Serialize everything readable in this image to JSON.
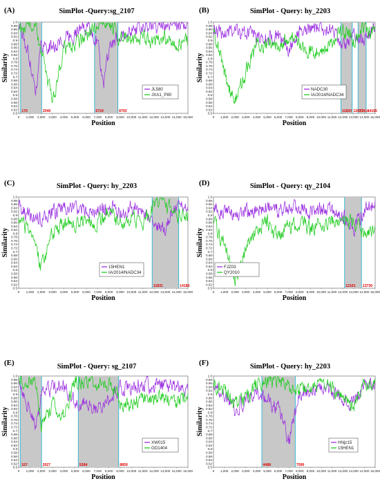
{
  "figure": {
    "colors": {
      "series_1": "#9b30e0",
      "series_2": "#22cc22",
      "shade": "#c8c8c8",
      "boundary": "#28b7d2",
      "region_label": "#e00000"
    },
    "panels": [
      {
        "label": "(A)",
        "title": "SimPlot -Query:sg_2107",
        "legend": [
          "JL580",
          "JXA1_P80"
        ],
        "ylabel": "Similarity",
        "xlabel": "Position",
        "ylim": [
          0.5,
          1.0
        ],
        "xlim": [
          0,
          15000
        ],
        "yticks": [
          "0.5",
          "0.52",
          "0.54",
          "0.56",
          "0.58",
          "0.6",
          "0.62",
          "0.64",
          "0.66",
          "0.68",
          "0.7",
          "0.72",
          "0.74",
          "0.76",
          "0.78",
          "0.8",
          "0.82",
          "0.84",
          "0.86",
          "0.88",
          "0.9",
          "0.92",
          "0.94",
          "0.96",
          "0.98",
          "1.0"
        ],
        "xticks": [
          "0",
          "1,000",
          "2,000",
          "3,000",
          "4,000",
          "5,000",
          "6,000",
          "7,000",
          "8,000",
          "9,000",
          "10,000",
          "11,000",
          "12,000",
          "13,000",
          "14,000",
          "15,000"
        ],
        "regions": [
          [
            170,
            2040
          ],
          [
            6724,
            8793
          ]
        ],
        "breakpoints": [
          "170",
          "2040",
          "6724",
          "8793"
        ],
        "seed": 11
      },
      {
        "label": "(B)",
        "title": "SimPlot - Query: hy_2203",
        "legend": [
          "NADC30",
          "IA/2014/NADC34"
        ],
        "ylabel": "Similarity",
        "xlabel": "Position",
        "ylim": [
          0.5,
          1.0
        ],
        "xlim": [
          0,
          15000
        ],
        "yticks": [
          "0.5",
          "0.52",
          "0.54",
          "0.56",
          "0.58",
          "0.6",
          "0.62",
          "0.64",
          "0.66",
          "0.68",
          "0.7",
          "0.72",
          "0.74",
          "0.76",
          "0.78",
          "0.8",
          "0.82",
          "0.84",
          "0.86",
          "0.88",
          "0.9",
          "0.92",
          "0.94",
          "0.96",
          "0.98",
          "1.0"
        ],
        "xticks": [
          "0",
          "1,000",
          "2,000",
          "3,000",
          "4,000",
          "5,000",
          "6,000",
          "7,000",
          "8,000",
          "9,000",
          "10,000",
          "11,000",
          "12,000",
          "13,000",
          "14,000",
          "15,000"
        ],
        "regions": [
          [
            11820,
            12873
          ],
          [
            13414,
            14165
          ]
        ],
        "breakpoints": [
          "11820",
          "12873",
          "13414",
          "14165"
        ],
        "seed": 23
      },
      {
        "label": "(C)",
        "title": "SimPlot - Query: hy_2203",
        "legend": [
          "15HEN1",
          "IA/2014/NADC34"
        ],
        "ylabel": "Similarity",
        "xlabel": "Position",
        "ylim": [
          0.5,
          1.0
        ],
        "xlim": [
          0,
          15000
        ],
        "yticks": [
          "0.5",
          "0.52",
          "0.54",
          "0.56",
          "0.58",
          "0.6",
          "0.62",
          "0.64",
          "0.66",
          "0.68",
          "0.7",
          "0.72",
          "0.74",
          "0.76",
          "0.78",
          "0.8",
          "0.82",
          "0.84",
          "0.86",
          "0.88",
          "0.9",
          "0.92",
          "0.94",
          "0.96",
          "0.98",
          "1.0"
        ],
        "xticks": [
          "0",
          "1,000",
          "2,000",
          "3,000",
          "4,000",
          "5,000",
          "6,000",
          "7,000",
          "8,000",
          "9,000",
          "10,000",
          "11,000",
          "12,000",
          "13,000",
          "14,000",
          "15,000"
        ],
        "regions": [
          [
            11831,
            14183
          ]
        ],
        "breakpoints": [
          "11831",
          "14183"
        ],
        "seed": 37
      },
      {
        "label": "(D)",
        "title": "SimPlot - Query: qy_2104",
        "legend": [
          "FJZ03",
          "QY2010"
        ],
        "ylabel": "Similarity",
        "xlabel": "Position",
        "ylim": [
          0.5,
          1.0
        ],
        "xlim": [
          0,
          15000
        ],
        "yticks": [
          "0.5",
          "0.52",
          "0.54",
          "0.56",
          "0.58",
          "0.6",
          "0.62",
          "0.64",
          "0.66",
          "0.68",
          "0.7",
          "0.72",
          "0.74",
          "0.76",
          "0.78",
          "0.8",
          "0.82",
          "0.84",
          "0.86",
          "0.88",
          "0.9",
          "0.92",
          "0.94",
          "0.96",
          "0.98",
          "1.0"
        ],
        "xticks": [
          "0",
          "1,000",
          "2,000",
          "3,000",
          "4,000",
          "5,000",
          "6,000",
          "7,000",
          "8,000",
          "9,000",
          "10,000",
          "11,000",
          "12,000",
          "13,000",
          "14,000",
          "15,000"
        ],
        "regions": [
          [
            12161,
            13730
          ]
        ],
        "breakpoints": [
          "12161",
          "13730"
        ],
        "seed": 41
      },
      {
        "label": "(E)",
        "title": "SimPlot - Query: sg_2107",
        "legend": [
          "XW015",
          "GD1404"
        ],
        "ylabel": "Similarity",
        "xlabel": "Position",
        "ylim": [
          0.5,
          1.0
        ],
        "xlim": [
          0,
          15000
        ],
        "yticks": [
          "0.5",
          "0.52",
          "0.54",
          "0.56",
          "0.58",
          "0.6",
          "0.62",
          "0.64",
          "0.66",
          "0.68",
          "0.7",
          "0.72",
          "0.74",
          "0.76",
          "0.78",
          "0.8",
          "0.82",
          "0.84",
          "0.86",
          "0.88",
          "0.9",
          "0.92",
          "0.94",
          "0.96",
          "0.98",
          "1.0"
        ],
        "xticks": [
          "0",
          "1,000",
          "2,000",
          "3,000",
          "4,000",
          "5,000",
          "6,000",
          "7,000",
          "8,000",
          "9,000",
          "10,000",
          "11,000",
          "12,000",
          "13,000",
          "14,000",
          "15,000"
        ],
        "regions": [
          [
            157,
            2027
          ],
          [
            5284,
            8859
          ]
        ],
        "breakpoints": [
          "157",
          "2027",
          "5284",
          "8859"
        ],
        "seed": 53
      },
      {
        "label": "(F)",
        "title": "SimPlot - Query: hy_2203",
        "legend": [
          "HNjz15",
          "15HEN1"
        ],
        "ylabel": "Similarity",
        "xlabel": "Position",
        "ylim": [
          0.5,
          1.0
        ],
        "xlim": [
          0,
          15000
        ],
        "yticks": [
          "0.5",
          "0.52",
          "0.54",
          "0.56",
          "0.58",
          "0.6",
          "0.62",
          "0.64",
          "0.66",
          "0.68",
          "0.7",
          "0.72",
          "0.74",
          "0.76",
          "0.78",
          "0.8",
          "0.82",
          "0.84",
          "0.86",
          "0.88",
          "0.9",
          "0.92",
          "0.94",
          "0.96",
          "0.98",
          "1.0"
        ],
        "xticks": [
          "0",
          "1,000",
          "2,000",
          "3,000",
          "4,000",
          "5,000",
          "6,000",
          "7,000",
          "8,000",
          "9,000",
          "10,000",
          "11,000",
          "12,000",
          "13,000",
          "14,000",
          "15,000"
        ],
        "regions": [
          [
            4488,
            7590
          ]
        ],
        "breakpoints": [
          "4488",
          "7590"
        ],
        "seed": 67
      }
    ]
  },
  "chart_data": [
    {
      "type": "line",
      "title": "SimPlot -Query:sg_2107",
      "xlabel": "Position",
      "ylabel": "Similarity",
      "xlim": [
        0,
        15000
      ],
      "ylim": [
        0.5,
        1.0
      ],
      "x": [
        0,
        1000,
        1500,
        2000,
        3000,
        4000,
        5000,
        6000,
        7000,
        7500,
        8000,
        9000,
        10000,
        11000,
        12000,
        13000,
        14000,
        15000
      ],
      "series": [
        {
          "name": "JL580",
          "values": [
            0.99,
            0.8,
            0.62,
            0.88,
            0.86,
            0.9,
            0.94,
            0.98,
            0.9,
            0.64,
            0.84,
            0.95,
            0.97,
            0.96,
            0.99,
            0.98,
            0.97,
            0.98
          ]
        },
        {
          "name": "JXA1_P80",
          "values": [
            0.97,
            0.99,
            0.98,
            0.84,
            0.56,
            0.86,
            0.88,
            0.92,
            0.99,
            1.0,
            0.99,
            0.91,
            0.9,
            0.92,
            0.89,
            0.91,
            0.88,
            0.9
          ]
        }
      ],
      "shaded_regions": [
        [
          170,
          2040
        ],
        [
          6724,
          8793
        ]
      ],
      "legend": "bottom-right"
    },
    {
      "type": "line",
      "title": "SimPlot - Query: hy_2203",
      "xlabel": "Position",
      "ylabel": "Similarity",
      "xlim": [
        0,
        15000
      ],
      "ylim": [
        0.5,
        1.0
      ],
      "x": [
        0,
        1000,
        2000,
        3000,
        4000,
        5000,
        6000,
        7000,
        8000,
        9000,
        10000,
        11000,
        12000,
        13000,
        14000,
        15000
      ],
      "series": [
        {
          "name": "NADC30",
          "values": [
            0.96,
            0.94,
            0.95,
            0.94,
            0.92,
            0.9,
            0.92,
            0.84,
            0.97,
            0.96,
            0.97,
            0.96,
            0.86,
            0.94,
            0.9,
            0.97
          ]
        },
        {
          "name": "IA/2014/NADC34",
          "values": [
            0.98,
            0.72,
            0.56,
            0.72,
            0.88,
            0.86,
            0.89,
            0.92,
            0.88,
            0.84,
            0.86,
            0.88,
            0.96,
            0.9,
            0.98,
            0.92
          ]
        }
      ],
      "shaded_regions": [
        [
          11820,
          12873
        ],
        [
          13414,
          14165
        ]
      ],
      "legend": "bottom-right"
    },
    {
      "type": "line",
      "title": "SimPlot - Query: hy_2203",
      "xlabel": "Position",
      "ylabel": "Similarity",
      "xlim": [
        0,
        15000
      ],
      "ylim": [
        0.5,
        1.0
      ],
      "x": [
        0,
        1000,
        2000,
        3000,
        4000,
        5000,
        6000,
        7000,
        8000,
        9000,
        10000,
        11000,
        12000,
        13000,
        14000,
        15000
      ],
      "series": [
        {
          "name": "15HEN1",
          "values": [
            0.95,
            0.9,
            0.87,
            0.92,
            0.94,
            0.93,
            0.94,
            0.92,
            0.95,
            0.92,
            0.94,
            0.93,
            0.86,
            0.82,
            0.96,
            0.95
          ]
        },
        {
          "name": "IA/2014/NADC34",
          "values": [
            0.9,
            0.78,
            0.62,
            0.8,
            0.86,
            0.85,
            0.88,
            0.86,
            0.9,
            0.86,
            0.88,
            0.86,
            0.96,
            0.97,
            0.88,
            0.9
          ]
        }
      ],
      "shaded_regions": [
        [
          11831,
          14183
        ]
      ],
      "legend": "bottom-right"
    },
    {
      "type": "line",
      "title": "SimPlot - Query: qy_2104",
      "xlabel": "Position",
      "ylabel": "Similarity",
      "xlim": [
        0,
        15000
      ],
      "ylim": [
        0.5,
        1.0
      ],
      "x": [
        0,
        1000,
        2000,
        3000,
        4000,
        5000,
        6000,
        7000,
        8000,
        9000,
        10000,
        11000,
        12000,
        13000,
        14000,
        15000
      ],
      "series": [
        {
          "name": "FJZ03",
          "values": [
            0.94,
            0.92,
            0.9,
            0.92,
            0.93,
            0.94,
            0.92,
            0.93,
            0.94,
            0.92,
            0.93,
            0.94,
            0.9,
            0.83,
            0.94,
            0.97
          ]
        },
        {
          "name": "QY2010",
          "values": [
            0.86,
            0.74,
            0.55,
            0.72,
            0.84,
            0.86,
            0.8,
            0.84,
            0.86,
            0.83,
            0.85,
            0.86,
            0.88,
            0.86,
            0.8,
            0.84
          ]
        }
      ],
      "shaded_regions": [
        [
          12161,
          13730
        ]
      ],
      "legend": "bottom-left"
    },
    {
      "type": "line",
      "title": "SimPlot - Query: sg_2107",
      "xlabel": "Position",
      "ylabel": "Similarity",
      "xlim": [
        0,
        15000
      ],
      "ylim": [
        0.5,
        1.0
      ],
      "x": [
        0,
        1000,
        1500,
        2000,
        3000,
        4000,
        5000,
        6000,
        7000,
        8000,
        9000,
        10000,
        11000,
        12000,
        13000,
        14000,
        15000
      ],
      "series": [
        {
          "name": "XW015",
          "values": [
            0.98,
            0.82,
            0.7,
            0.9,
            0.93,
            0.95,
            0.86,
            0.84,
            0.82,
            0.86,
            0.94,
            0.93,
            0.96,
            0.94,
            0.95,
            0.93,
            0.94
          ]
        },
        {
          "name": "GD1404",
          "values": [
            0.99,
            0.96,
            0.95,
            0.72,
            0.84,
            0.78,
            0.97,
            0.98,
            0.97,
            0.96,
            0.86,
            0.84,
            0.88,
            0.86,
            0.88,
            0.86,
            0.88
          ]
        }
      ],
      "shaded_regions": [
        [
          157,
          2027
        ],
        [
          5284,
          8859
        ]
      ],
      "legend": "bottom-right"
    },
    {
      "type": "line",
      "title": "SimPlot - Query: hy_2203",
      "xlabel": "Position",
      "ylabel": "Similarity",
      "xlim": [
        0,
        15000
      ],
      "ylim": [
        0.5,
        1.0
      ],
      "x": [
        0,
        1000,
        2000,
        3000,
        4000,
        5000,
        6000,
        7000,
        8000,
        9000,
        10000,
        11000,
        12000,
        13000,
        14000,
        15000
      ],
      "series": [
        {
          "name": "HNjz15",
          "values": [
            0.96,
            0.9,
            0.82,
            0.86,
            0.92,
            0.86,
            0.82,
            0.64,
            0.9,
            0.92,
            0.93,
            0.92,
            0.88,
            0.86,
            0.96,
            0.95
          ]
        },
        {
          "name": "15HEN1",
          "values": [
            0.96,
            0.92,
            0.84,
            0.88,
            0.95,
            0.97,
            0.96,
            0.95,
            0.92,
            0.93,
            0.94,
            0.93,
            0.86,
            0.84,
            0.97,
            0.96
          ]
        }
      ],
      "shaded_regions": [
        [
          4488,
          7590
        ]
      ],
      "legend": "bottom-right"
    }
  ]
}
